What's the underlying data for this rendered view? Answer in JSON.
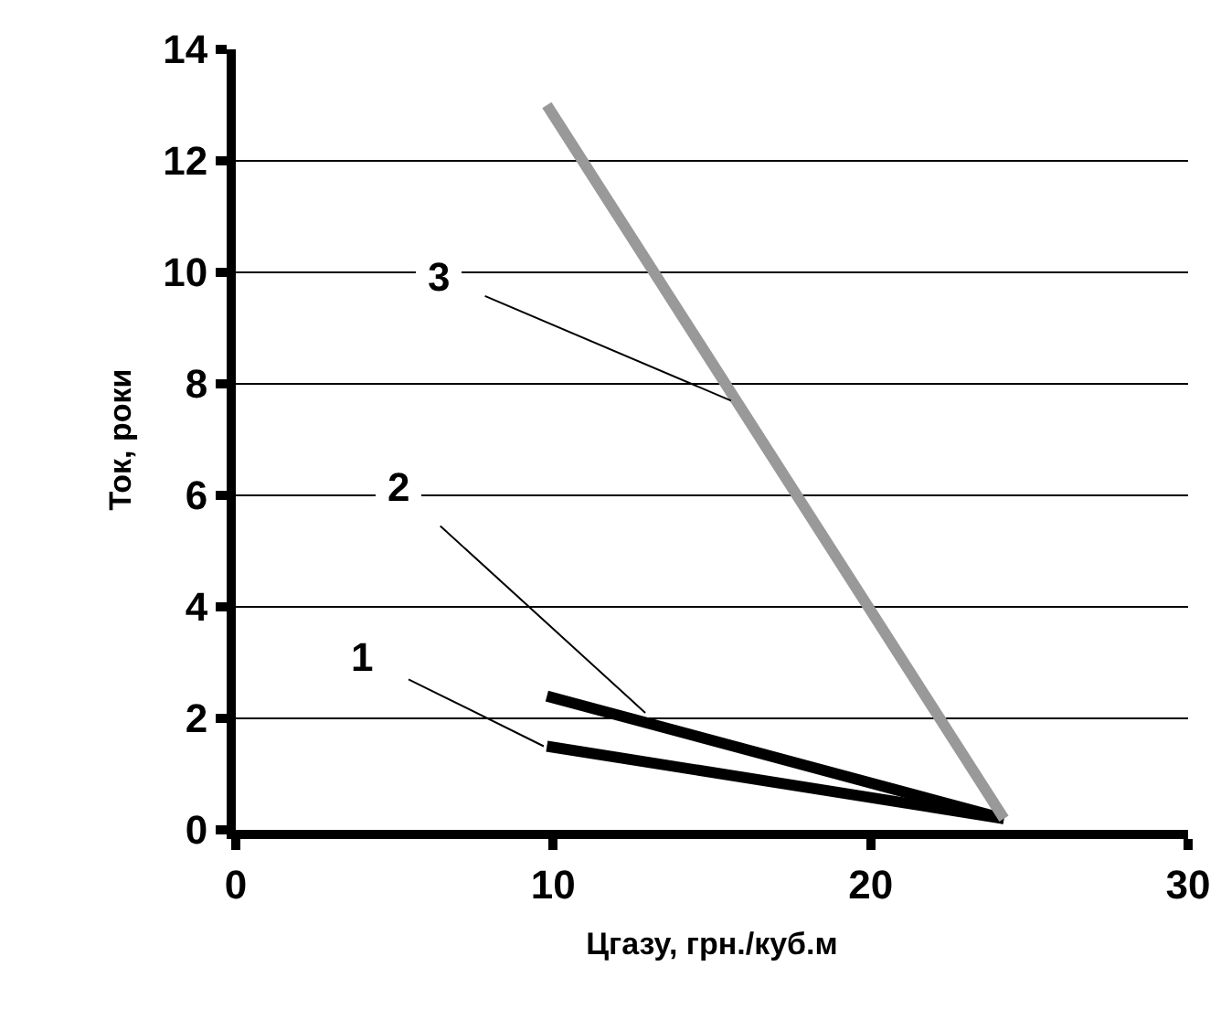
{
  "chart_data": {
    "type": "line",
    "xlabel": "Цгазу, грн./куб.м",
    "ylabel": "Ток, роки",
    "xlim": [
      0,
      30
    ],
    "xticks": [
      0,
      10,
      20,
      30
    ],
    "ylim": [
      0,
      14
    ],
    "yticks": [
      0,
      2,
      4,
      6,
      8,
      10,
      12,
      14
    ],
    "grid": "y",
    "marker": "none",
    "x": [
      9.8,
      24.2
    ],
    "series": [
      {
        "color": "#000000",
        "values": [
          1.5,
          0.2
        ]
      },
      {
        "color": "#000000",
        "values": [
          2.4,
          0.2
        ]
      },
      {
        "color": "#999999",
        "values": [
          13.0,
          0.2
        ]
      }
    ],
    "annotations": [
      {
        "text": "1",
        "x": 9.7,
        "y": 1.5
      },
      {
        "text": "2",
        "x": 12.9,
        "y": 2.1
      },
      {
        "text": "3",
        "x": 15.6,
        "y": 7.7
      }
    ]
  }
}
